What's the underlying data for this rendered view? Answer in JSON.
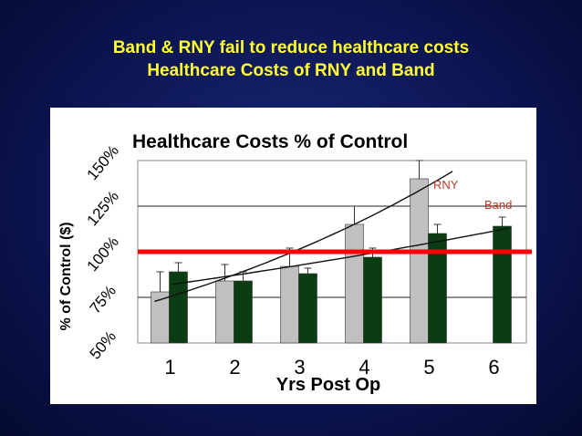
{
  "slide": {
    "title_line1": "Band & RNY fail to reduce healthcare costs",
    "title_line2": "Healthcare Costs of RNY and Band"
  },
  "colors": {
    "background": "#0b1450",
    "title_text": "#ffff33",
    "rny_bar": "#c0c0c0",
    "band_bar": "#0b3d13",
    "reference_line": "#ff0000",
    "series_label": "#c0392b"
  },
  "chart_data": {
    "type": "bar",
    "title": "Healthcare Costs % of Control",
    "xlabel": "Yrs Post Op",
    "ylabel": "% of Control ($)",
    "categories": [
      "1",
      "2",
      "3",
      "4",
      "5",
      "6"
    ],
    "yticks": [
      "50%",
      "75%",
      "100%",
      "125%",
      "150%"
    ],
    "ytick_values": [
      50,
      75,
      100,
      125,
      150
    ],
    "ylim": [
      50,
      150
    ],
    "grid": true,
    "reference_line": 100,
    "series": [
      {
        "name": "RNY",
        "values": [
          78,
          84,
          92,
          115,
          140,
          null
        ],
        "errors": [
          11,
          9,
          10,
          10,
          10,
          null
        ]
      },
      {
        "name": "Band",
        "values": [
          89,
          84,
          88,
          97,
          110,
          114
        ],
        "errors": [
          5,
          5,
          3,
          5,
          5,
          5
        ]
      }
    ],
    "trendlines": [
      "RNY",
      "Band"
    ]
  }
}
